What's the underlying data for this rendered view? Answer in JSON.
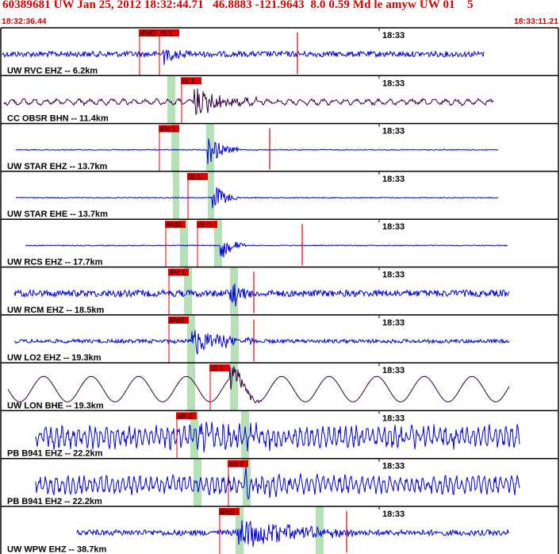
{
  "header": {
    "title": "60389681 UW Jan 25, 2012 18:32:44.71   46.8883 -121.9643  8.0 0.59 Md le amyw UW 01    5",
    "start_time": "18:32:36.44",
    "end_time": "18:33:11.21"
  },
  "colors": {
    "header_text": "#d40000",
    "trace_blue": "#0000dd",
    "trace_dark": "#330044",
    "pick_red": "#dd0000",
    "band_green": "#b6e0b6",
    "border": "#000000"
  },
  "minute_label": "18:33",
  "traces": [
    {
      "label": "UW RVC EHZ -- 6.2km",
      "color": "blue",
      "picks": [
        "iPdD",
        "iS 1"
      ]
    },
    {
      "label": "CC OBSR BHN -- 11.4km",
      "color": "dark",
      "picks": [
        "iS 1"
      ]
    },
    {
      "label": "UW STAR EHZ -- 13.7km",
      "color": "blue",
      "picks": [
        "iPc 1"
      ]
    },
    {
      "label": "UW STAR EHE -- 13.7km",
      "color": "blue",
      "picks": [
        "iS 1"
      ]
    },
    {
      "label": "UW RCS EHZ -- 17.7km",
      "color": "blue",
      "picks": [
        "iPd0",
        "iS 0"
      ]
    },
    {
      "label": "UW RCM EHZ -- 18.5km",
      "color": "blue",
      "picks": [
        "iPc 1"
      ]
    },
    {
      "label": "UW LO2 EHZ -- 19.3km",
      "color": "blue",
      "picks": [
        "iPd0"
      ]
    },
    {
      "label": "UW LON BHE -- 19.3km",
      "color": "dark",
      "picks": [
        "iS 1"
      ]
    },
    {
      "label": "PB B941 EHZ -- 22.2km",
      "color": "blue",
      "picks": [
        "eP 2"
      ]
    },
    {
      "label": "PB B941 EH2 -- 22.2km",
      "color": "blue",
      "picks": [
        "eS 2"
      ]
    },
    {
      "label": "UW WPW EHZ -- 38.7km",
      "color": "blue",
      "picks": [
        "iPc0"
      ]
    }
  ]
}
